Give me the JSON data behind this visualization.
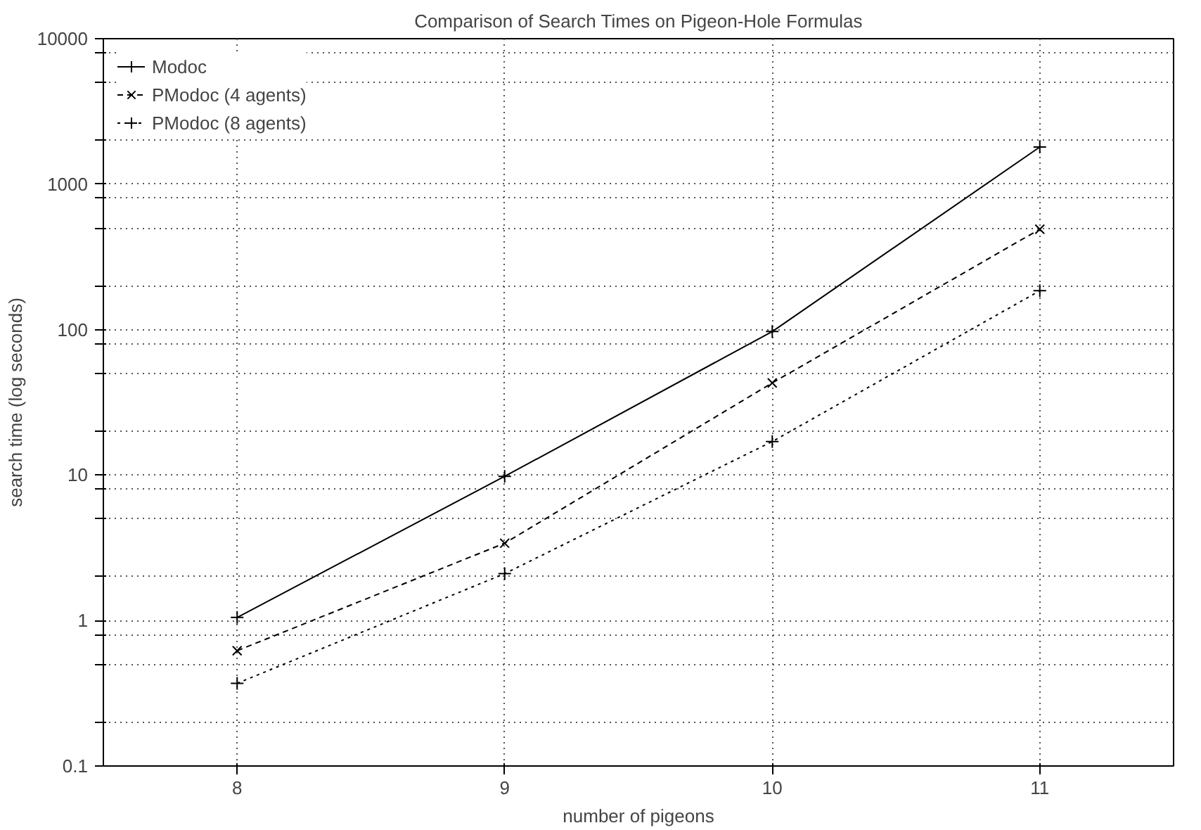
{
  "chart_data": {
    "type": "line",
    "title": "Comparison of Search Times on Pigeon-Hole Formulas",
    "xlabel": "number of pigeons",
    "ylabel": "search time (log seconds)",
    "x": [
      8,
      9,
      10,
      11
    ],
    "xlim": [
      7.5,
      11.5
    ],
    "xticks": [
      8,
      9,
      10,
      11
    ],
    "log": true,
    "ylim": [
      0.1,
      10000
    ],
    "yticks": [
      0.1,
      {
        "value": 0.2,
        "label": null
      },
      {
        "value": 0.5,
        "label": null
      },
      {
        "value": 0.8,
        "label": null
      },
      1,
      {
        "value": 2,
        "label": null
      },
      {
        "value": 5,
        "label": null
      },
      {
        "value": 8,
        "label": null
      },
      10,
      {
        "value": 20,
        "label": null
      },
      {
        "value": 50,
        "label": null
      },
      {
        "value": 80,
        "label": null
      },
      100,
      {
        "value": 200,
        "label": null
      },
      {
        "value": 500,
        "label": null
      },
      {
        "value": 800,
        "label": null
      },
      1000,
      {
        "value": 2000,
        "label": null
      },
      {
        "value": 5000,
        "label": null
      },
      {
        "value": 8000,
        "label": null
      },
      10000
    ],
    "grid": true,
    "legend": "top left",
    "series": [
      {
        "name": "Modoc",
        "color": "#000000",
        "values": [
          1.05,
          9.8,
          97,
          1800
        ],
        "marker": "cross",
        "line_style": "solid"
      },
      {
        "name": "PModoc (4 agents)",
        "color": "#000000",
        "values": [
          0.62,
          3.4,
          43,
          490
        ],
        "marker": "x",
        "line_style": "dashed"
      },
      {
        "name": "PModoc (8 agents)",
        "color": "#000000",
        "values": [
          0.37,
          2.1,
          17,
          185
        ],
        "marker": "cross",
        "line_style": "dotted"
      }
    ]
  }
}
